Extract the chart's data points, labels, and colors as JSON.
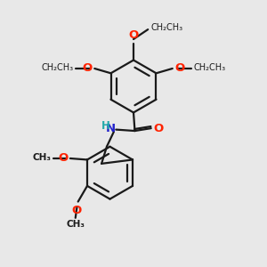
{
  "bg_color": "#e8e8e8",
  "bond_color": "#1a1a1a",
  "oxygen_color": "#ff2200",
  "nitrogen_color": "#2222cc",
  "hydrogen_color": "#22aaaa",
  "line_width": 1.6,
  "figsize": [
    3.0,
    3.0
  ],
  "dpi": 100,
  "xlim": [
    0,
    10
  ],
  "ylim": [
    0,
    10
  ]
}
